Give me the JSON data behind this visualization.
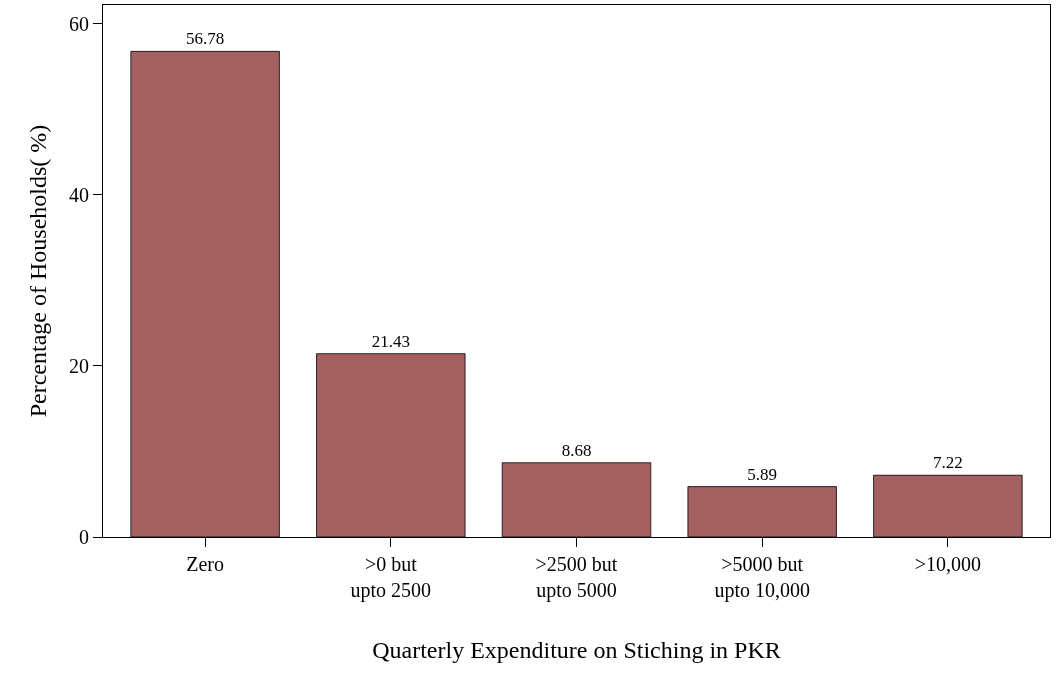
{
  "chart_data": {
    "type": "bar",
    "xlabel": "Quarterly Expenditure on Stiching in PKR",
    "ylabel": "Percentage of Households( %)",
    "categories": [
      "Zero",
      ">0 but\nupto 2500",
      ">2500 but\nupto 5000",
      ">5000 but\nupto 10,000",
      ">10,000"
    ],
    "values": [
      56.78,
      21.43,
      8.68,
      5.89,
      7.22
    ],
    "color": "#a45f60",
    "ylim": [
      0,
      62.2
    ],
    "yticks": [
      0,
      20,
      40,
      60
    ],
    "grid": false,
    "data_labels": true
  }
}
